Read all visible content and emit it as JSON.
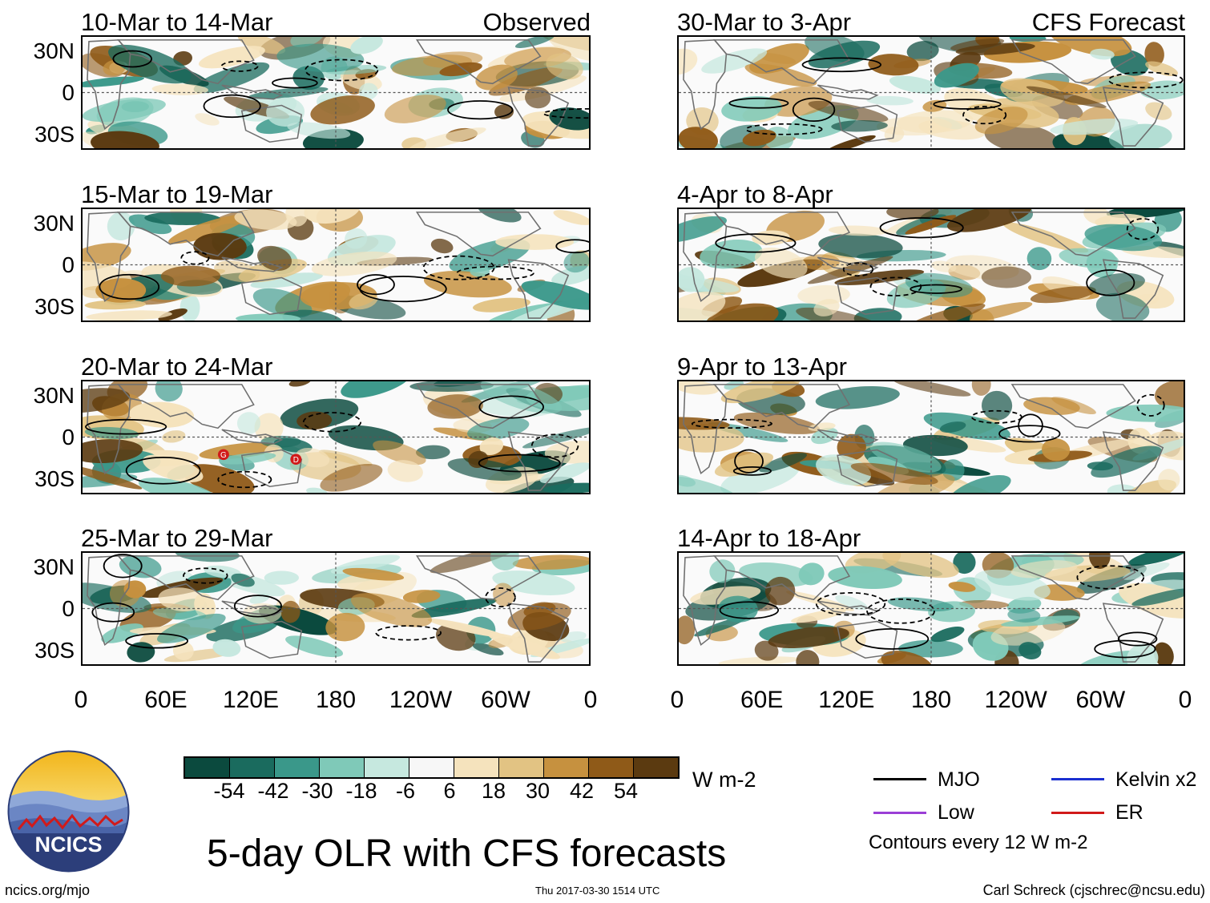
{
  "main_title": "5-day OLR with CFS forecasts",
  "left_panels": [
    {
      "title": "10-Mar to 14-Mar",
      "tag": "Observed"
    },
    {
      "title": "15-Mar to 19-Mar",
      "tag": ""
    },
    {
      "title": "20-Mar to 24-Mar",
      "tag": ""
    },
    {
      "title": "25-Mar to 29-Mar",
      "tag": ""
    }
  ],
  "right_panels": [
    {
      "title": "30-Mar to 3-Apr",
      "tag": "CFS Forecast"
    },
    {
      "title": "4-Apr to 8-Apr",
      "tag": ""
    },
    {
      "title": "9-Apr to 13-Apr",
      "tag": ""
    },
    {
      "title": "14-Apr to 18-Apr",
      "tag": ""
    }
  ],
  "y_labels": [
    "30N",
    "0",
    "30S"
  ],
  "x_labels": [
    "0",
    "60E",
    "120E",
    "180",
    "120W",
    "60W",
    "0"
  ],
  "colorbar": {
    "colors": [
      "#0b4a3e",
      "#1a6b5e",
      "#3a988a",
      "#7fc9b8",
      "#c6e8df",
      "#f7f7f7",
      "#f5e3bd",
      "#e2c383",
      "#c6913f",
      "#8f5a18",
      "#5b3a10"
    ],
    "labels": [
      "-54",
      "-42",
      "-30",
      "-18",
      "-6",
      "6",
      "18",
      "30",
      "42",
      "54"
    ],
    "unit": "W m-2"
  },
  "legend": {
    "items": [
      {
        "label": "MJO",
        "color": "#000000"
      },
      {
        "label": "Kelvin x2",
        "color": "#1a2fd0"
      },
      {
        "label": "Low",
        "color": "#9b3fd6"
      },
      {
        "label": "ER",
        "color": "#d11a1a"
      }
    ],
    "note": "Contours every 12 W m-2"
  },
  "logo_text": "NCICS",
  "footer": {
    "url": "ncics.org/mjo",
    "timestamp": "Thu 2017-03-30 1514 UTC",
    "credit": "Carl Schreck (cjschrec@ncsu.edu)"
  },
  "storm_markers": [
    "G",
    "D"
  ]
}
